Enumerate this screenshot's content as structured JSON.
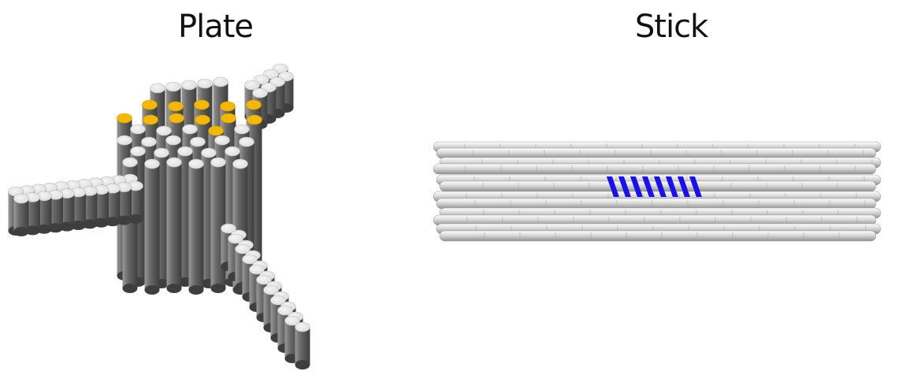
{
  "panels": [
    {
      "title": "Plate",
      "depiction": "ruled-rods",
      "colors": {
        "rod_side": "#6b6b6b",
        "rod_top": "#dcdcdc",
        "highlight": "#f5b800"
      }
    },
    {
      "title": "Stick",
      "depiction": "rolled-rods",
      "colors": {
        "rod_body": "#d8d8d8",
        "rod_shadow": "#8f8f8f",
        "highlight": "#1a10e8"
      }
    }
  ]
}
